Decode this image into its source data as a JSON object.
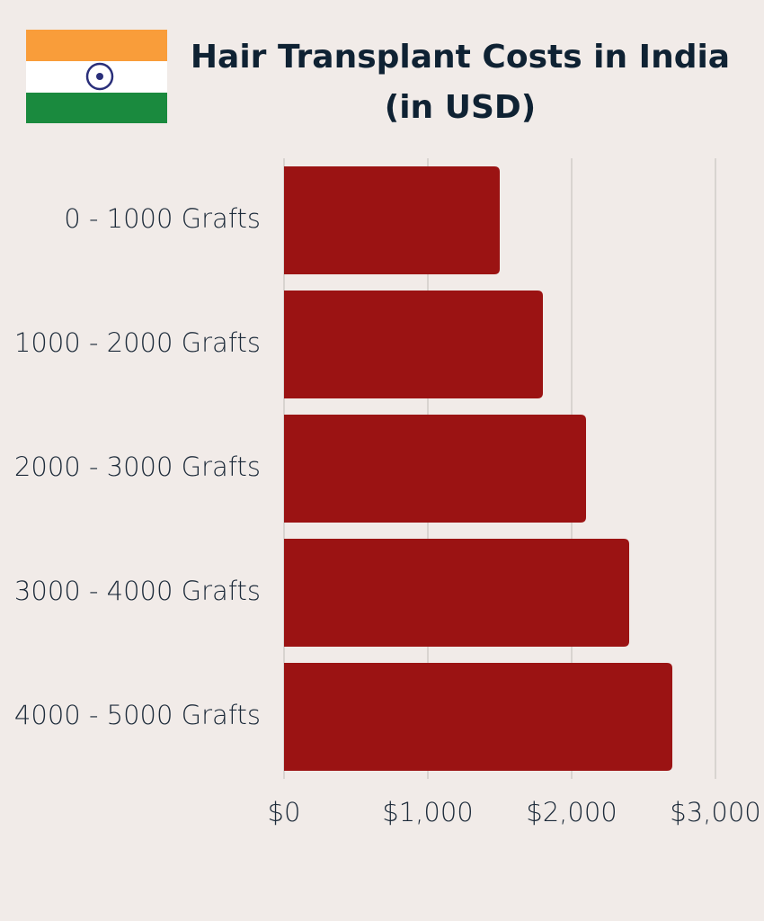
{
  "chart_data": {
    "type": "bar",
    "orientation": "horizontal",
    "title": "Hair Transplant Costs in India (in USD)",
    "categories": [
      "0 - 1000 Grafts",
      "1000 - 2000 Grafts",
      "2000 - 3000 Grafts",
      "3000 - 4000 Grafts",
      "4000 - 5000 Grafts"
    ],
    "values": [
      1500,
      1800,
      2100,
      2400,
      2700
    ],
    "color": "#9b1313",
    "xlim": [
      0,
      3000
    ],
    "xticks": [
      {
        "value": 0,
        "label": "$0"
      },
      {
        "value": 1000,
        "label": "$1,000"
      },
      {
        "value": 2000,
        "label": "$2,000"
      },
      {
        "value": 3000,
        "label": "$3,000"
      }
    ],
    "grid": true
  }
}
